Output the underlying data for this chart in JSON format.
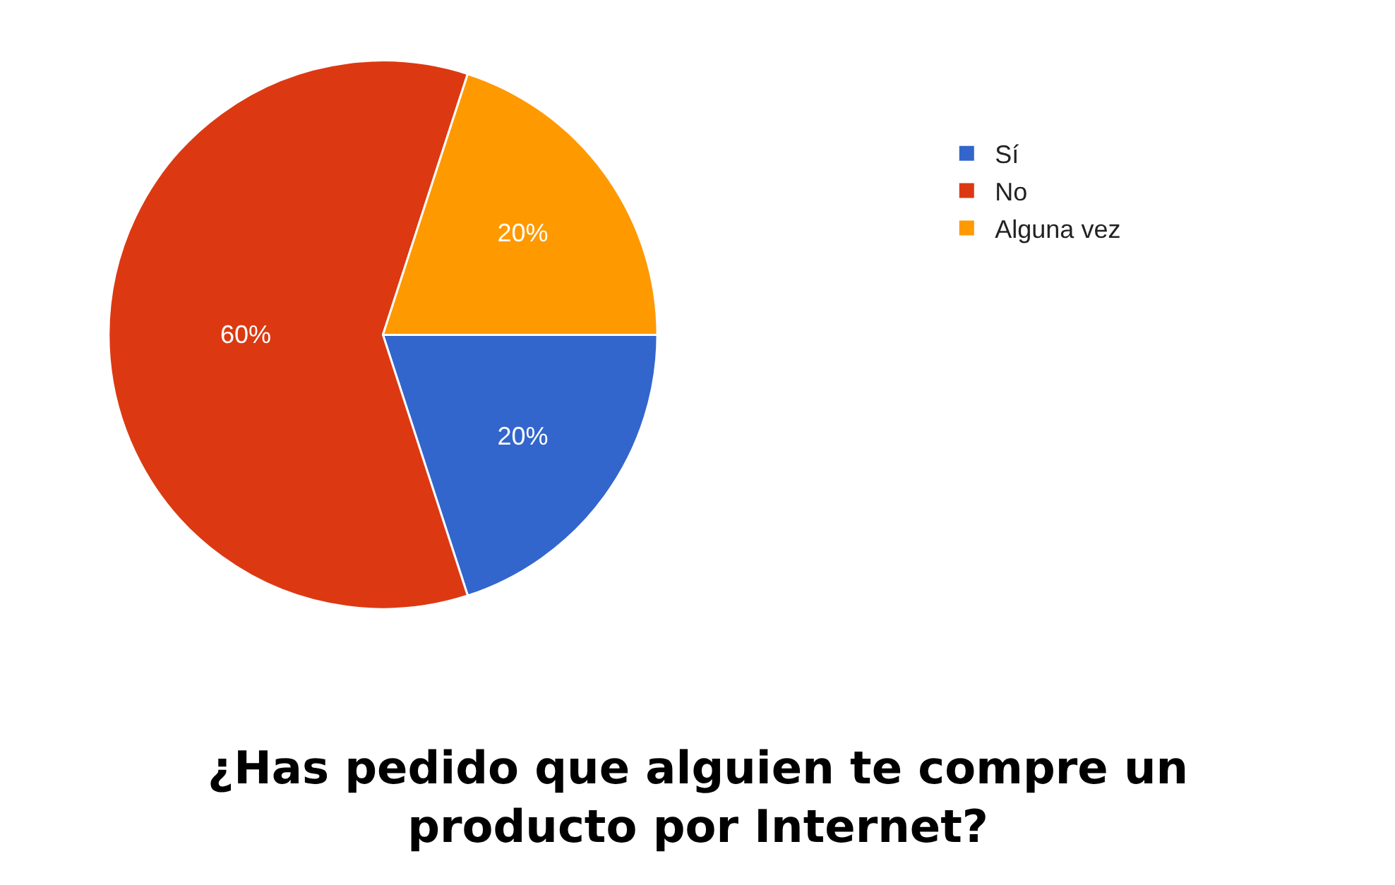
{
  "chart_data": {
    "type": "pie",
    "title": "¿Has pedido que alguien te compre un\nproducto por Internet?",
    "categories": [
      "Sí",
      "No",
      "Alguna vez"
    ],
    "values": [
      20,
      60,
      20
    ],
    "colors": [
      "#3366cc",
      "#dc3912",
      "#ff9900"
    ],
    "value_labels": [
      "20%",
      "60%",
      "20%"
    ],
    "legend": "top right"
  }
}
